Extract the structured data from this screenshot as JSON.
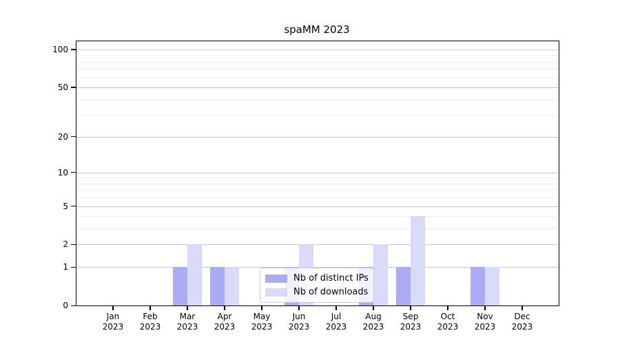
{
  "chart_title": "spaMM 2023",
  "chart_data": {
    "type": "bar",
    "title": "spaMM 2023",
    "categories": [
      "Jan 2023",
      "Feb 2023",
      "Mar 2023",
      "Apr 2023",
      "May 2023",
      "Jun 2023",
      "Jul 2023",
      "Aug 2023",
      "Sep 2023",
      "Oct 2023",
      "Nov 2023",
      "Dec 2023"
    ],
    "series": [
      {
        "name": "Nb of distinct IPs",
        "color": "#aaaaf5",
        "values": [
          0,
          0,
          1,
          1,
          0,
          1,
          0,
          1,
          1,
          0,
          1,
          0
        ]
      },
      {
        "name": "Nb of downloads",
        "color": "#d9d9f8",
        "values": [
          0,
          0,
          2,
          1,
          0,
          2,
          0,
          2,
          4,
          0,
          1,
          0
        ]
      }
    ],
    "xlabel": "",
    "ylabel": "",
    "yscale": "log1p",
    "ylim": [
      0,
      116
    ],
    "yticks_major": [
      0,
      1,
      2,
      5,
      10,
      20,
      50,
      100
    ],
    "yticks_minor": [
      3,
      4,
      6,
      7,
      8,
      9,
      30,
      40,
      60,
      70,
      80,
      90
    ],
    "grid": true,
    "legend_position": "bottom-center-inside",
    "colors": {
      "grid_major": "#c6c6c6",
      "grid_minor": "#ededed",
      "axis": "#000000",
      "background": "#ffffff"
    }
  }
}
